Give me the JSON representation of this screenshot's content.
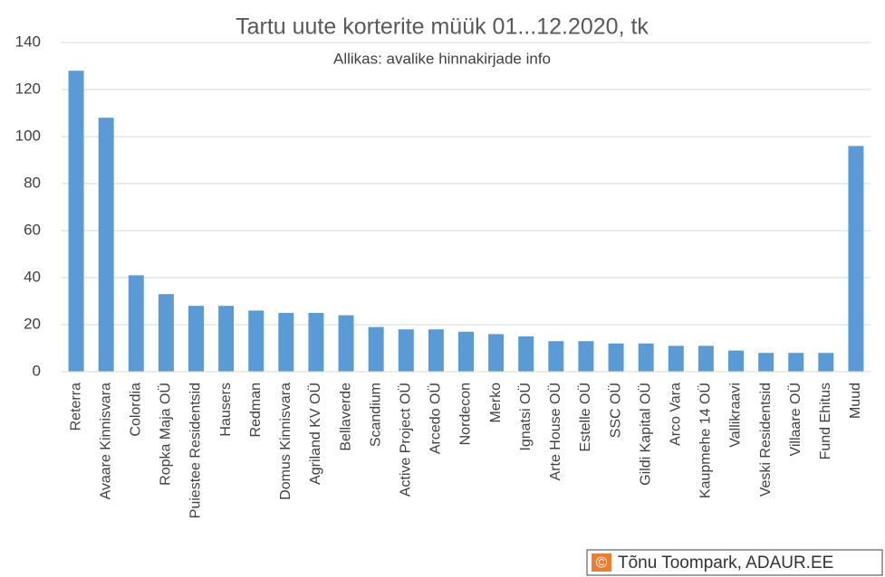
{
  "chart_data": {
    "type": "bar",
    "title": "Tartu uute korterite müük 01...12.2020, tk",
    "subtitle": "Allikas: avalike hinnakirjade info",
    "categories": [
      "Reterra",
      "Avaare Kinnisvara",
      "Colordia",
      "Ropka Maja OÜ",
      "Puiestee Residentsid",
      "Hausers",
      "Redman",
      "Domus Kinnisvara",
      "Agriland KV OÜ",
      "Bellaverde",
      "Scandium",
      "Active Project OÜ",
      "Arcedo OÜ",
      "Nordecon",
      "Merko",
      "Ignatsi OÜ",
      "Arte House OÜ",
      "Estelle OÜ",
      "SSC OÜ",
      "Gildi Kapital OÜ",
      "Arco Vara",
      "Kaupmehe 14 OÜ",
      "Vallikraavi",
      "Veski Residentsid",
      "Villaare OÜ",
      "Fund Ehitus",
      "Muud"
    ],
    "values": [
      128,
      108,
      41,
      33,
      28,
      28,
      26,
      25,
      25,
      24,
      19,
      18,
      18,
      17,
      16,
      15,
      13,
      13,
      12,
      12,
      11,
      11,
      9,
      8,
      8,
      8,
      96
    ],
    "color": "#5b9bd5",
    "ylim": [
      0,
      140
    ],
    "yticks": [
      0,
      20,
      40,
      60,
      80,
      100,
      120,
      140
    ],
    "grid": true,
    "credit": {
      "symbol": "©",
      "text": "Tõnu Toompark, ADAUR.EE"
    }
  }
}
